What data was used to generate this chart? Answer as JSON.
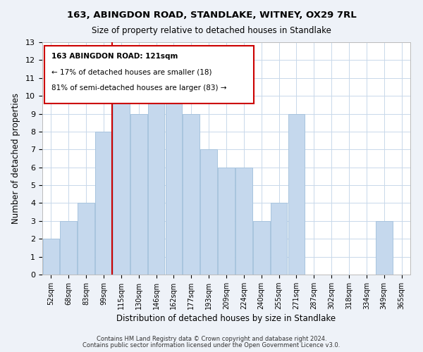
{
  "title1": "163, ABINGDON ROAD, STANDLAKE, WITNEY, OX29 7RL",
  "title2": "Size of property relative to detached houses in Standlake",
  "xlabel": "Distribution of detached houses by size in Standlake",
  "ylabel": "Number of detached properties",
  "bar_labels": [
    "52sqm",
    "68sqm",
    "83sqm",
    "99sqm",
    "115sqm",
    "130sqm",
    "146sqm",
    "162sqm",
    "177sqm",
    "193sqm",
    "209sqm",
    "224sqm",
    "240sqm",
    "255sqm",
    "271sqm",
    "287sqm",
    "302sqm",
    "318sqm",
    "334sqm",
    "349sqm",
    "365sqm"
  ],
  "bar_values": [
    2,
    3,
    4,
    8,
    11,
    9,
    10,
    10,
    9,
    7,
    6,
    6,
    3,
    4,
    9,
    0,
    0,
    0,
    0,
    3,
    0
  ],
  "bar_color": "#c5d8ed",
  "bar_edge_color": "#a8c4de",
  "vline_color": "#cc0000",
  "annotation_title": "163 ABINGDON ROAD: 121sqm",
  "annotation_line1": "← 17% of detached houses are smaller (18)",
  "annotation_line2": "81% of semi-detached houses are larger (83) →",
  "ylim": [
    0,
    13
  ],
  "yticks": [
    0,
    1,
    2,
    3,
    4,
    5,
    6,
    7,
    8,
    9,
    10,
    11,
    12,
    13
  ],
  "footer1": "Contains HM Land Registry data © Crown copyright and database right 2024.",
  "footer2": "Contains public sector information licensed under the Open Government Licence v3.0.",
  "bg_color": "#eef2f8",
  "plot_bg_color": "#ffffff",
  "grid_color": "#c8d8ea"
}
